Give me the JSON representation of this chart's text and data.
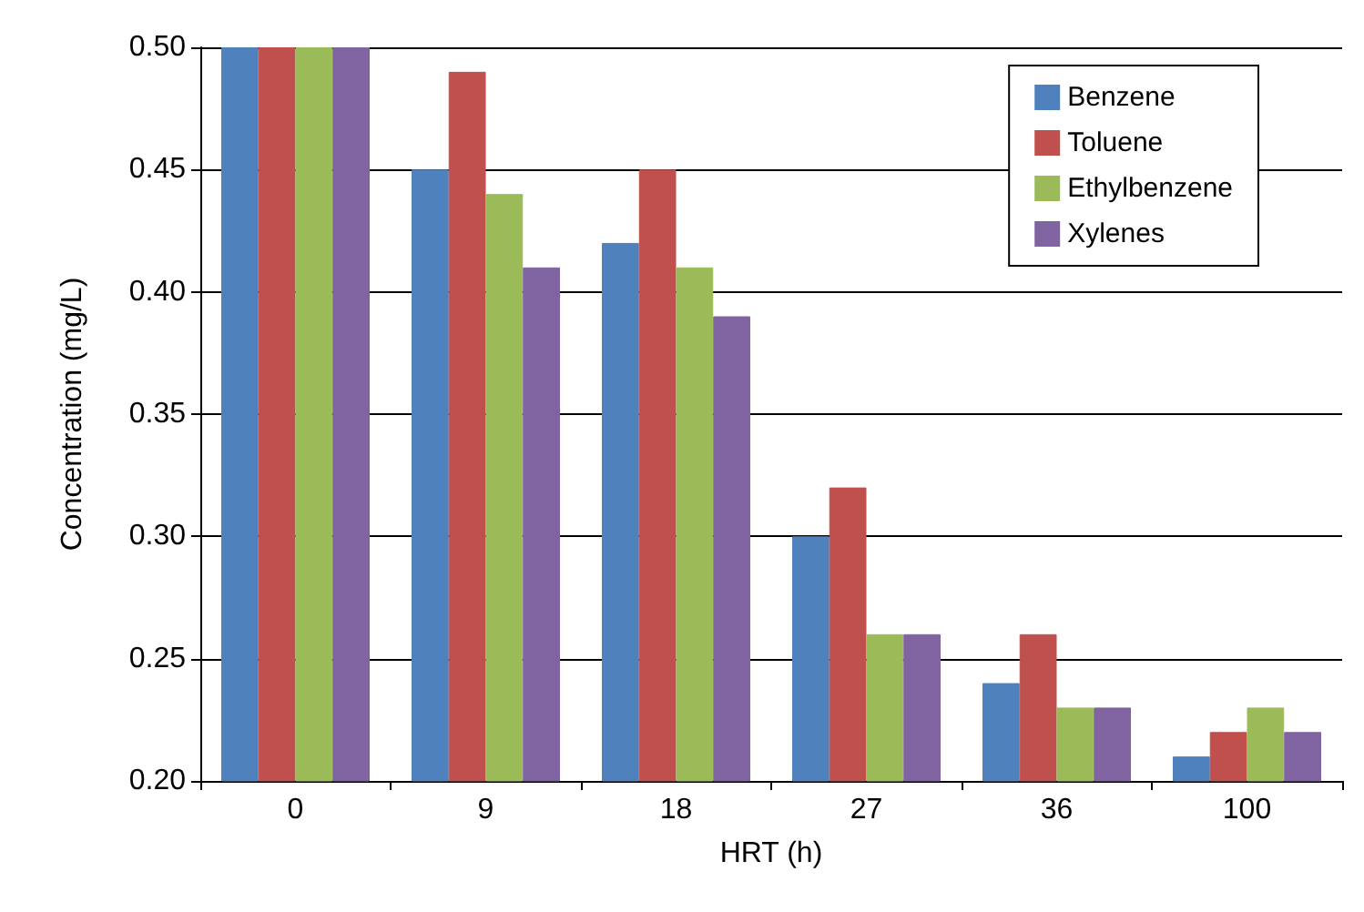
{
  "chart_data": {
    "type": "bar",
    "xlabel": "HRT (h)",
    "ylabel": "Concentration (mg/L)",
    "categories": [
      "0",
      "9",
      "18",
      "27",
      "36",
      "100"
    ],
    "series": [
      {
        "name": "Benzene",
        "color": "#4f81bd",
        "values": [
          0.5,
          0.45,
          0.42,
          0.3,
          0.24,
          0.21
        ]
      },
      {
        "name": "Toluene",
        "color": "#c0504d",
        "values": [
          0.5,
          0.49,
          0.45,
          0.32,
          0.26,
          0.22
        ]
      },
      {
        "name": "Ethylbenzene",
        "color": "#9bbb59",
        "values": [
          0.5,
          0.44,
          0.41,
          0.26,
          0.23,
          0.23
        ]
      },
      {
        "name": "Xylenes",
        "color": "#8064a2",
        "values": [
          0.5,
          0.41,
          0.39,
          0.26,
          0.23,
          0.22
        ]
      }
    ],
    "ylim": [
      0.2,
      0.5
    ],
    "yticks": [
      {
        "value": 0.2,
        "label": "0.20"
      },
      {
        "value": 0.25,
        "label": "0.25"
      },
      {
        "value": 0.3,
        "label": "0.30"
      },
      {
        "value": 0.35,
        "label": "0.35"
      },
      {
        "value": 0.4,
        "label": "0.40"
      },
      {
        "value": 0.45,
        "label": "0.45"
      },
      {
        "value": 0.5,
        "label": "0.50"
      }
    ],
    "grid": "y",
    "legend": "top right"
  }
}
